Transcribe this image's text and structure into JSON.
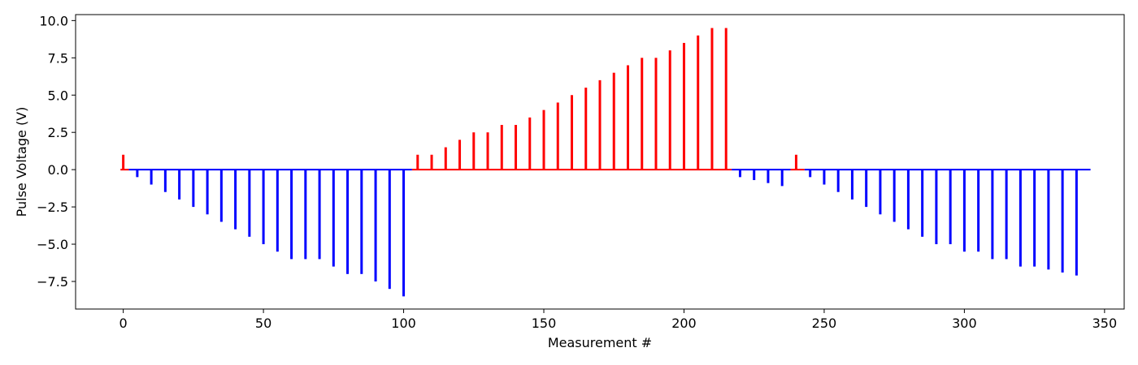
{
  "chart_data": {
    "type": "bar",
    "xlabel": "Measurement #",
    "ylabel": "Pulse Voltage (V)",
    "xlim": [
      -17,
      357
    ],
    "ylim": [
      -9.35,
      10.4
    ],
    "x_ticks": [
      0,
      50,
      100,
      150,
      200,
      250,
      300,
      350
    ],
    "y_ticks": [
      -7.5,
      -5.0,
      -2.5,
      0.0,
      2.5,
      5.0,
      7.5,
      10.0
    ],
    "x_tick_labels": [
      "0",
      "50",
      "100",
      "150",
      "200",
      "250",
      "300",
      "350"
    ],
    "y_tick_labels": [
      "−7.5",
      "−5.0",
      "−2.5",
      "0.0",
      "2.5",
      "5.0",
      "7.5",
      "10.0"
    ],
    "grid": false,
    "colors": {
      "positive": "#ff0000",
      "negative": "#0000ff"
    },
    "segments": [
      {
        "x_start": -1,
        "x_end": 2,
        "color": "#ff0000"
      },
      {
        "x_start": 2,
        "x_end": 103,
        "color": "#0000ff"
      },
      {
        "x_start": 103,
        "x_end": 217,
        "color": "#ff0000"
      },
      {
        "x_start": 217,
        "x_end": 238,
        "color": "#0000ff"
      },
      {
        "x_start": 238,
        "x_end": 243,
        "color": "#ff0000"
      },
      {
        "x_start": 243,
        "x_end": 345,
        "color": "#0000ff"
      }
    ],
    "points": [
      {
        "x": 0,
        "y": 1.0
      },
      {
        "x": 5,
        "y": -0.5
      },
      {
        "x": 10,
        "y": -1.0
      },
      {
        "x": 15,
        "y": -1.5
      },
      {
        "x": 20,
        "y": -2.0
      },
      {
        "x": 25,
        "y": -2.5
      },
      {
        "x": 30,
        "y": -3.0
      },
      {
        "x": 35,
        "y": -3.5
      },
      {
        "x": 40,
        "y": -4.0
      },
      {
        "x": 45,
        "y": -4.5
      },
      {
        "x": 50,
        "y": -5.0
      },
      {
        "x": 55,
        "y": -5.5
      },
      {
        "x": 60,
        "y": -6.0
      },
      {
        "x": 65,
        "y": -6.0
      },
      {
        "x": 70,
        "y": -6.0
      },
      {
        "x": 75,
        "y": -6.5
      },
      {
        "x": 80,
        "y": -7.0
      },
      {
        "x": 85,
        "y": -7.0
      },
      {
        "x": 90,
        "y": -7.5
      },
      {
        "x": 95,
        "y": -8.0
      },
      {
        "x": 100,
        "y": -8.5
      },
      {
        "x": 105,
        "y": 1.0
      },
      {
        "x": 110,
        "y": 1.0
      },
      {
        "x": 115,
        "y": 1.5
      },
      {
        "x": 120,
        "y": 2.0
      },
      {
        "x": 125,
        "y": 2.5
      },
      {
        "x": 130,
        "y": 2.5
      },
      {
        "x": 135,
        "y": 3.0
      },
      {
        "x": 140,
        "y": 3.0
      },
      {
        "x": 145,
        "y": 3.5
      },
      {
        "x": 150,
        "y": 4.0
      },
      {
        "x": 155,
        "y": 4.5
      },
      {
        "x": 160,
        "y": 5.0
      },
      {
        "x": 165,
        "y": 5.5
      },
      {
        "x": 170,
        "y": 6.0
      },
      {
        "x": 175,
        "y": 6.5
      },
      {
        "x": 180,
        "y": 7.0
      },
      {
        "x": 185,
        "y": 7.5
      },
      {
        "x": 190,
        "y": 7.5
      },
      {
        "x": 195,
        "y": 8.0
      },
      {
        "x": 200,
        "y": 8.5
      },
      {
        "x": 205,
        "y": 9.0
      },
      {
        "x": 210,
        "y": 9.5
      },
      {
        "x": 215,
        "y": 9.5
      },
      {
        "x": 220,
        "y": -0.5
      },
      {
        "x": 225,
        "y": -0.7
      },
      {
        "x": 230,
        "y": -0.9
      },
      {
        "x": 235,
        "y": -1.1
      },
      {
        "x": 240,
        "y": 1.0
      },
      {
        "x": 245,
        "y": -0.5
      },
      {
        "x": 250,
        "y": -1.0
      },
      {
        "x": 255,
        "y": -1.5
      },
      {
        "x": 260,
        "y": -2.0
      },
      {
        "x": 265,
        "y": -2.5
      },
      {
        "x": 270,
        "y": -3.0
      },
      {
        "x": 275,
        "y": -3.5
      },
      {
        "x": 280,
        "y": -4.0
      },
      {
        "x": 285,
        "y": -4.5
      },
      {
        "x": 290,
        "y": -5.0
      },
      {
        "x": 295,
        "y": -5.0
      },
      {
        "x": 300,
        "y": -5.5
      },
      {
        "x": 305,
        "y": -5.5
      },
      {
        "x": 310,
        "y": -6.0
      },
      {
        "x": 315,
        "y": -6.0
      },
      {
        "x": 320,
        "y": -6.5
      },
      {
        "x": 325,
        "y": -6.5
      },
      {
        "x": 330,
        "y": -6.7
      },
      {
        "x": 335,
        "y": -6.9
      },
      {
        "x": 340,
        "y": -7.1
      }
    ]
  }
}
